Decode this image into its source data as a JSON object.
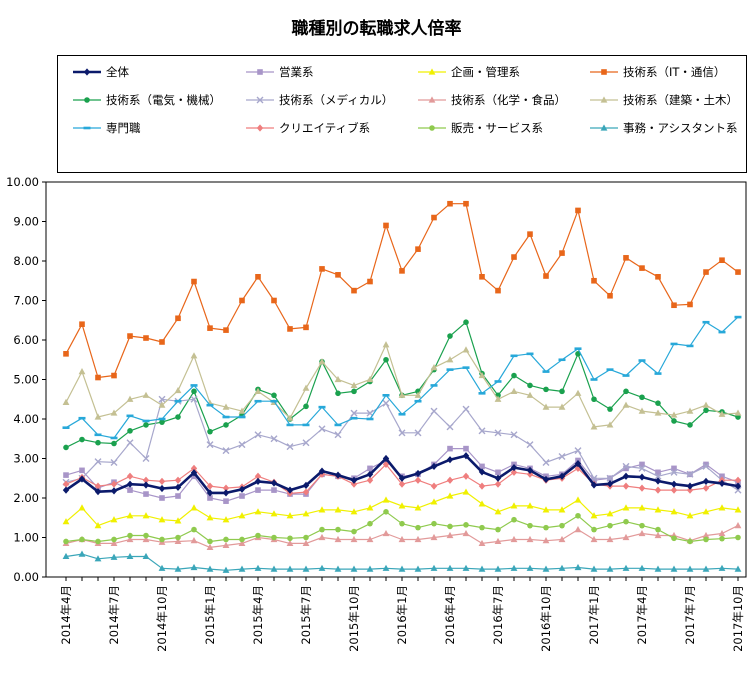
{
  "chart_data": {
    "type": "line",
    "title": "職種別の転職求人倍率",
    "xlabel": "",
    "ylabel": "",
    "ylim": [
      0,
      10
    ],
    "yticks": [
      "0.00",
      "1.00",
      "2.00",
      "3.00",
      "4.00",
      "5.00",
      "6.00",
      "7.00",
      "8.00",
      "9.00",
      "10.00"
    ],
    "legend_position": "top",
    "grid": false,
    "categories": [
      "2014年4月",
      "2014年5月",
      "2014年6月",
      "2014年7月",
      "2014年8月",
      "2014年9月",
      "2014年10月",
      "2014年11月",
      "2014年12月",
      "2015年1月",
      "2015年2月",
      "2015年3月",
      "2015年4月",
      "2015年5月",
      "2015年6月",
      "2015年7月",
      "2015年8月",
      "2015年9月",
      "2015年10月",
      "2015年11月",
      "2015年12月",
      "2016年1月",
      "2016年2月",
      "2016年3月",
      "2016年4月",
      "2016年5月",
      "2016年6月",
      "2016年7月",
      "2016年8月",
      "2016年9月",
      "2016年10月",
      "2016年11月",
      "2016年12月",
      "2017年1月",
      "2017年2月",
      "2017年3月",
      "2017年4月",
      "2017年5月",
      "2017年6月",
      "2017年7月",
      "2017年8月",
      "2017年9月",
      "2017年10月"
    ],
    "x_tick_labels": [
      "2014年4月",
      "2014年7月",
      "2014年10月",
      "2015年1月",
      "2015年4月",
      "2015年7月",
      "2015年10月",
      "2016年1月",
      "2016年4月",
      "2016年7月",
      "2016年10月",
      "2017年1月",
      "2017年4月",
      "2017年7月",
      "2017年10月"
    ],
    "series": [
      {
        "name": "全体",
        "color": "#0b1a6b",
        "marker": "diamond",
        "bold": true,
        "values": [
          2.2,
          2.48,
          2.16,
          2.18,
          2.35,
          2.33,
          2.24,
          2.27,
          2.64,
          2.13,
          2.13,
          2.22,
          2.42,
          2.38,
          2.2,
          2.32,
          2.68,
          2.58,
          2.45,
          2.6,
          3.0,
          2.5,
          2.62,
          2.8,
          2.97,
          3.07,
          2.66,
          2.5,
          2.77,
          2.7,
          2.47,
          2.55,
          2.87,
          2.33,
          2.36,
          2.55,
          2.53,
          2.43,
          2.35,
          2.3,
          2.42,
          2.37,
          2.3
        ]
      },
      {
        "name": "営業系",
        "color": "#a895c8",
        "marker": "square",
        "values": [
          2.58,
          2.7,
          2.25,
          2.4,
          2.2,
          2.1,
          2.0,
          2.05,
          2.55,
          2.0,
          1.92,
          2.05,
          2.2,
          2.2,
          2.1,
          2.1,
          2.6,
          2.55,
          2.5,
          2.75,
          2.95,
          2.55,
          2.6,
          2.85,
          3.25,
          3.25,
          2.8,
          2.65,
          2.85,
          2.75,
          2.55,
          2.6,
          2.95,
          2.45,
          2.5,
          2.75,
          2.85,
          2.65,
          2.75,
          2.6,
          2.85,
          2.55,
          2.4
        ]
      },
      {
        "name": "企画・管理系",
        "color": "#f0f000",
        "marker": "triangle",
        "values": [
          1.4,
          1.75,
          1.3,
          1.45,
          1.55,
          1.55,
          1.45,
          1.42,
          1.75,
          1.5,
          1.45,
          1.55,
          1.65,
          1.6,
          1.55,
          1.6,
          1.7,
          1.7,
          1.65,
          1.75,
          1.95,
          1.8,
          1.75,
          1.9,
          2.05,
          2.15,
          1.85,
          1.65,
          1.8,
          1.8,
          1.7,
          1.7,
          1.95,
          1.55,
          1.6,
          1.75,
          1.75,
          1.7,
          1.65,
          1.55,
          1.65,
          1.75,
          1.7
        ]
      },
      {
        "name": "技術系（IT・通信）",
        "color": "#e8661a",
        "marker": "square",
        "values": [
          5.65,
          6.4,
          5.05,
          5.1,
          6.1,
          6.05,
          5.95,
          6.55,
          7.48,
          6.3,
          6.25,
          7.0,
          7.6,
          7.0,
          6.28,
          6.32,
          7.8,
          7.65,
          7.25,
          7.48,
          8.9,
          7.75,
          8.3,
          9.1,
          9.45,
          9.45,
          7.6,
          7.25,
          8.1,
          8.68,
          7.62,
          8.2,
          9.28,
          7.5,
          7.12,
          8.08,
          7.82,
          7.6,
          6.88,
          6.9,
          7.72,
          8.02,
          7.72
        ]
      },
      {
        "name": "技術系（電気・機械）",
        "color": "#1aa14e",
        "marker": "circle",
        "values": [
          3.28,
          3.48,
          3.4,
          3.38,
          3.7,
          3.85,
          3.92,
          4.05,
          4.7,
          3.68,
          3.85,
          4.1,
          4.75,
          4.6,
          4.0,
          4.32,
          5.45,
          4.65,
          4.7,
          4.95,
          5.5,
          4.6,
          4.7,
          5.25,
          6.1,
          6.45,
          5.15,
          4.6,
          5.1,
          4.85,
          4.75,
          4.7,
          5.65,
          4.5,
          4.25,
          4.7,
          4.55,
          4.4,
          3.95,
          3.85,
          4.22,
          4.18,
          4.05
        ]
      },
      {
        "name": "技術系（メディカル）",
        "color": "#a7a7cc",
        "marker": "x",
        "values": [
          2.4,
          2.5,
          2.92,
          2.9,
          3.4,
          3.0,
          4.5,
          4.45,
          4.5,
          3.35,
          3.2,
          3.35,
          3.6,
          3.5,
          3.3,
          3.4,
          3.75,
          3.6,
          4.15,
          4.15,
          4.4,
          3.65,
          3.65,
          4.2,
          3.8,
          4.25,
          3.7,
          3.65,
          3.6,
          3.35,
          2.9,
          3.05,
          3.2,
          2.5,
          2.5,
          2.8,
          2.75,
          2.55,
          2.65,
          2.6,
          2.8,
          2.45,
          2.2
        ]
      },
      {
        "name": "技術系（化学・食品）",
        "color": "#e29a9a",
        "marker": "triangle",
        "values": [
          0.85,
          0.95,
          0.85,
          0.85,
          0.95,
          0.95,
          0.88,
          0.9,
          0.92,
          0.75,
          0.8,
          0.85,
          1.0,
          0.95,
          0.85,
          0.85,
          1.0,
          0.95,
          0.95,
          0.95,
          1.1,
          0.95,
          0.95,
          1.0,
          1.05,
          1.1,
          0.85,
          0.9,
          0.95,
          0.95,
          0.92,
          0.95,
          1.2,
          0.95,
          0.95,
          1.0,
          1.1,
          1.05,
          1.05,
          0.92,
          1.05,
          1.1,
          1.3
        ]
      },
      {
        "name": "技術系（建築・土木）",
        "color": "#c4c093",
        "marker": "triangle",
        "values": [
          4.42,
          5.2,
          4.05,
          4.15,
          4.5,
          4.6,
          4.35,
          4.72,
          5.6,
          4.4,
          4.3,
          4.2,
          4.7,
          4.42,
          4.02,
          4.78,
          5.45,
          5.0,
          4.85,
          5.0,
          5.88,
          4.6,
          4.6,
          5.3,
          5.5,
          5.75,
          5.1,
          4.5,
          4.7,
          4.6,
          4.3,
          4.3,
          4.65,
          3.8,
          3.85,
          4.35,
          4.2,
          4.15,
          4.1,
          4.2,
          4.35,
          4.12,
          4.15
        ]
      },
      {
        "name": "専門職",
        "color": "#27a8d9",
        "marker": "dash",
        "values": [
          3.78,
          4.02,
          3.6,
          3.52,
          4.08,
          3.95,
          4.0,
          4.45,
          4.85,
          4.35,
          4.05,
          4.05,
          4.45,
          4.45,
          3.85,
          3.85,
          4.3,
          3.85,
          4.02,
          4.0,
          4.6,
          4.12,
          4.45,
          4.85,
          5.25,
          5.3,
          4.65,
          4.95,
          5.6,
          5.65,
          5.2,
          5.5,
          5.78,
          5.0,
          5.25,
          5.1,
          5.48,
          5.15,
          5.9,
          5.85,
          6.45,
          6.2,
          6.58
        ]
      },
      {
        "name": "クリエイティブ系",
        "color": "#ef7e7e",
        "marker": "diamond",
        "values": [
          2.35,
          2.52,
          2.3,
          2.35,
          2.55,
          2.45,
          2.42,
          2.45,
          2.75,
          2.3,
          2.25,
          2.28,
          2.55,
          2.4,
          2.12,
          2.15,
          2.6,
          2.55,
          2.35,
          2.45,
          2.85,
          2.35,
          2.45,
          2.3,
          2.45,
          2.55,
          2.3,
          2.35,
          2.65,
          2.6,
          2.45,
          2.5,
          2.75,
          2.35,
          2.3,
          2.3,
          2.25,
          2.2,
          2.2,
          2.2,
          2.25,
          2.45,
          2.45
        ]
      },
      {
        "name": "販売・サービス系",
        "color": "#8fca4e",
        "marker": "circle",
        "values": [
          0.9,
          0.95,
          0.9,
          0.95,
          1.05,
          1.05,
          0.95,
          1.0,
          1.2,
          0.9,
          0.95,
          0.95,
          1.05,
          1.0,
          0.98,
          1.0,
          1.2,
          1.2,
          1.15,
          1.35,
          1.65,
          1.35,
          1.25,
          1.35,
          1.28,
          1.32,
          1.25,
          1.2,
          1.45,
          1.3,
          1.25,
          1.3,
          1.55,
          1.2,
          1.3,
          1.4,
          1.3,
          1.2,
          0.98,
          0.9,
          0.95,
          0.97,
          1.0
        ]
      },
      {
        "name": "事務・アシスタント系",
        "color": "#3aa6b9",
        "marker": "triangle",
        "values": [
          0.52,
          0.58,
          0.46,
          0.5,
          0.52,
          0.52,
          0.22,
          0.2,
          0.24,
          0.2,
          0.17,
          0.2,
          0.22,
          0.2,
          0.2,
          0.2,
          0.22,
          0.2,
          0.2,
          0.2,
          0.22,
          0.2,
          0.2,
          0.22,
          0.22,
          0.22,
          0.2,
          0.2,
          0.22,
          0.22,
          0.2,
          0.22,
          0.24,
          0.2,
          0.2,
          0.22,
          0.22,
          0.2,
          0.2,
          0.2,
          0.2,
          0.22,
          0.2
        ]
      }
    ]
  }
}
